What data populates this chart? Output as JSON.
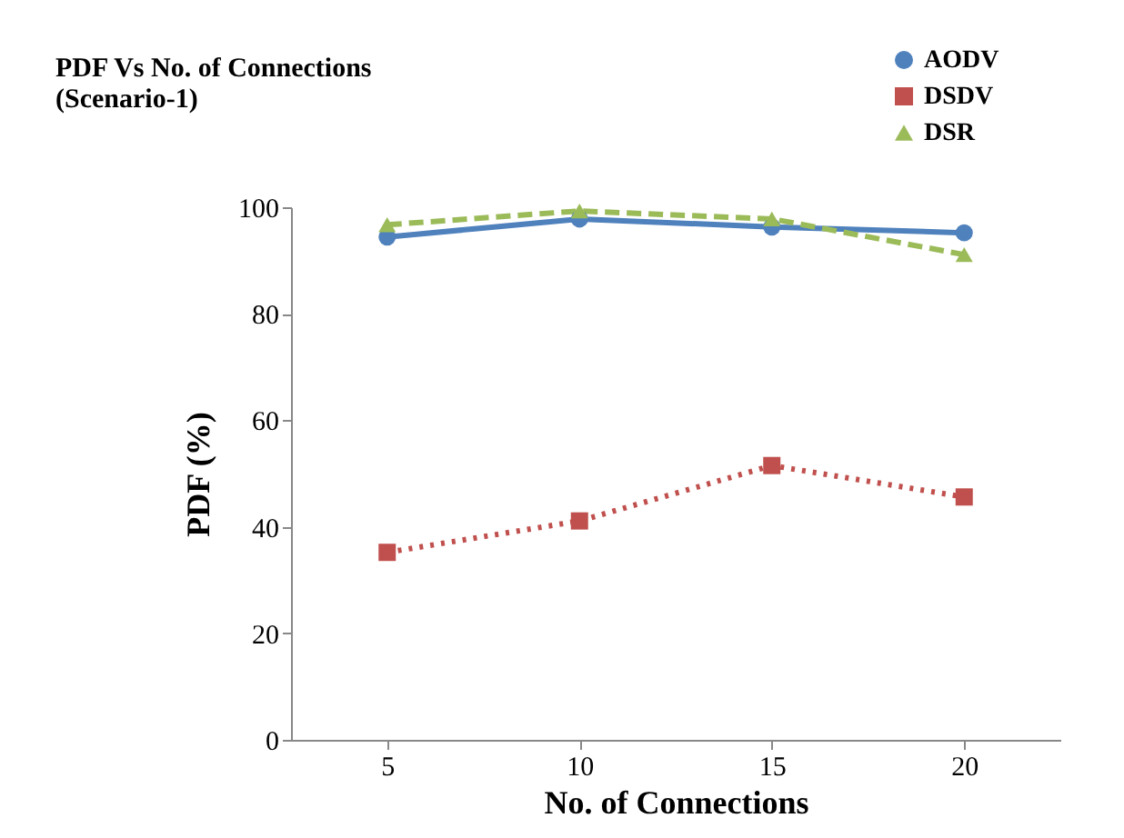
{
  "chart_data": {
    "type": "line",
    "title": "PDF Vs No. of Connections\n(Scenario-1)",
    "xlabel": "No. of Connections",
    "ylabel": "PDF (%)",
    "categories": [
      "5",
      "10",
      "15",
      "20"
    ],
    "series": [
      {
        "name": "AODV",
        "color": "#4f81bd",
        "values": [
          94.4,
          97.8,
          96.3,
          95.2
        ],
        "marker": "circle",
        "line_style": "solid"
      },
      {
        "name": "DSDV",
        "color": "#c0504d",
        "values": [
          35.2,
          41.1,
          51.5,
          45.6
        ],
        "marker": "square",
        "line_style": "dotted"
      },
      {
        "name": "DSR",
        "color": "#9bbb59",
        "values": [
          96.7,
          99.3,
          97.8,
          91.1
        ],
        "marker": "triangle",
        "line_style": "dashed"
      }
    ],
    "ylim": [
      0,
      100
    ],
    "yticks": [
      0,
      20,
      40,
      60,
      80,
      100
    ],
    "grid": false,
    "legend": "top right"
  }
}
